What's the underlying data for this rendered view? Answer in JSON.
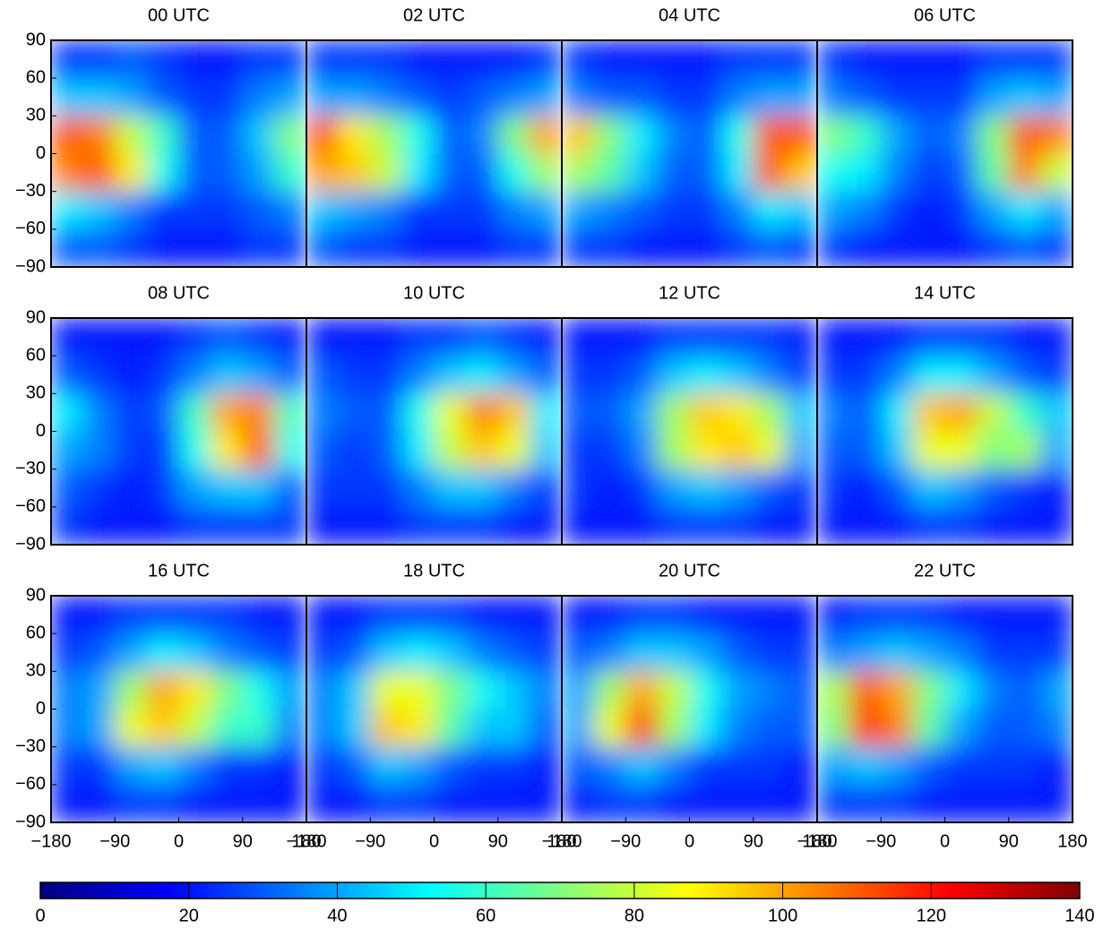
{
  "chart_data": [
    {
      "type": "heatmap",
      "title": "00 UTC",
      "xlim": [
        -180,
        180
      ],
      "ylim": [
        -90,
        90
      ],
      "yticks": [
        90,
        60,
        30,
        0,
        {
          "value": -30,
          "label": "−30"
        },
        {
          "value": -60,
          "label": "−60"
        },
        {
          "value": -90,
          "label": "−90"
        }
      ],
      "xbins": [
        -180,
        -135,
        -90,
        -45,
        0,
        45,
        90,
        135,
        180
      ],
      "ybins": [
        90,
        60,
        30,
        0,
        -30,
        -60,
        -90
      ],
      "values": [
        [
          25,
          25,
          30,
          25,
          20,
          20,
          25,
          25
        ],
        [
          45,
          45,
          40,
          30,
          25,
          25,
          35,
          40
        ],
        [
          110,
          105,
          80,
          60,
          30,
          30,
          45,
          70
        ],
        [
          105,
          110,
          90,
          55,
          30,
          30,
          40,
          60
        ],
        [
          50,
          45,
          35,
          25,
          25,
          25,
          30,
          35
        ],
        [
          30,
          30,
          25,
          20,
          20,
          20,
          25,
          25
        ]
      ]
    },
    {
      "type": "heatmap",
      "title": "02 UTC",
      "xlim": [
        -180,
        180
      ],
      "ylim": [
        -90,
        90
      ],
      "xbins": [
        -180,
        -135,
        -90,
        -45,
        0,
        45,
        90,
        135,
        180
      ],
      "ybins": [
        90,
        60,
        30,
        0,
        -30,
        -60,
        -90
      ],
      "values": [
        [
          25,
          25,
          25,
          20,
          20,
          20,
          20,
          25
        ],
        [
          40,
          40,
          35,
          30,
          25,
          30,
          35,
          40
        ],
        [
          110,
          90,
          75,
          55,
          30,
          35,
          70,
          100
        ],
        [
          100,
          95,
          80,
          50,
          30,
          30,
          55,
          75
        ],
        [
          45,
          40,
          35,
          25,
          25,
          25,
          35,
          40
        ],
        [
          30,
          25,
          25,
          20,
          20,
          20,
          25,
          25
        ]
      ]
    },
    {
      "type": "heatmap",
      "title": "04 UTC",
      "xlim": [
        -180,
        180
      ],
      "ylim": [
        -90,
        90
      ],
      "xbins": [
        -180,
        -135,
        -90,
        -45,
        0,
        45,
        90,
        135,
        180
      ],
      "ybins": [
        90,
        60,
        30,
        0,
        -30,
        -60,
        -90
      ],
      "values": [
        [
          25,
          20,
          20,
          20,
          20,
          25,
          25,
          25
        ],
        [
          35,
          30,
          30,
          25,
          25,
          35,
          40,
          40
        ],
        [
          95,
          70,
          50,
          35,
          30,
          55,
          110,
          110
        ],
        [
          75,
          65,
          45,
          30,
          30,
          50,
          110,
          95
        ],
        [
          40,
          35,
          30,
          25,
          25,
          35,
          50,
          45
        ],
        [
          25,
          25,
          20,
          20,
          20,
          25,
          30,
          25
        ]
      ]
    },
    {
      "type": "heatmap",
      "title": "06 UTC",
      "xlim": [
        -180,
        180
      ],
      "ylim": [
        -90,
        90
      ],
      "xbins": [
        -180,
        -135,
        -90,
        -45,
        0,
        45,
        90,
        135,
        180
      ],
      "ybins": [
        90,
        60,
        30,
        0,
        -30,
        -60,
        -90
      ],
      "values": [
        [
          25,
          20,
          20,
          20,
          20,
          25,
          25,
          25
        ],
        [
          35,
          30,
          25,
          25,
          25,
          40,
          45,
          40
        ],
        [
          70,
          60,
          40,
          30,
          35,
          70,
          110,
          105
        ],
        [
          55,
          50,
          35,
          25,
          30,
          65,
          105,
          80
        ],
        [
          40,
          35,
          25,
          20,
          25,
          40,
          50,
          40
        ],
        [
          25,
          20,
          20,
          20,
          20,
          25,
          30,
          25
        ]
      ]
    },
    {
      "type": "heatmap",
      "title": "08 UTC",
      "xlim": [
        -180,
        180
      ],
      "ylim": [
        -90,
        90
      ],
      "yticks": [
        90,
        60,
        30,
        0,
        {
          "value": -30,
          "label": "−30"
        },
        {
          "value": -60,
          "label": "−60"
        },
        {
          "value": -90,
          "label": "−90"
        }
      ],
      "xbins": [
        -180,
        -135,
        -90,
        -45,
        0,
        45,
        90,
        135,
        180
      ],
      "ybins": [
        90,
        60,
        30,
        0,
        -30,
        -60,
        -90
      ],
      "values": [
        [
          20,
          20,
          20,
          20,
          25,
          30,
          25,
          20
        ],
        [
          30,
          25,
          20,
          25,
          35,
          45,
          40,
          30
        ],
        [
          50,
          35,
          25,
          30,
          60,
          100,
          105,
          60
        ],
        [
          40,
          35,
          25,
          25,
          55,
          90,
          110,
          55
        ],
        [
          30,
          25,
          20,
          25,
          40,
          45,
          45,
          30
        ],
        [
          25,
          20,
          20,
          20,
          25,
          25,
          25,
          25
        ]
      ]
    },
    {
      "type": "heatmap",
      "title": "10 UTC",
      "xlim": [
        -180,
        180
      ],
      "ylim": [
        -90,
        90
      ],
      "xbins": [
        -180,
        -135,
        -90,
        -45,
        0,
        45,
        90,
        135,
        180
      ],
      "ybins": [
        90,
        60,
        30,
        0,
        -30,
        -60,
        -90
      ],
      "values": [
        [
          20,
          20,
          20,
          25,
          25,
          30,
          25,
          20
        ],
        [
          30,
          25,
          25,
          35,
          45,
          50,
          40,
          30
        ],
        [
          35,
          30,
          30,
          55,
          85,
          105,
          95,
          50
        ],
        [
          30,
          25,
          30,
          50,
          80,
          95,
          85,
          45
        ],
        [
          25,
          25,
          25,
          35,
          45,
          45,
          35,
          25
        ],
        [
          20,
          20,
          20,
          25,
          25,
          25,
          20,
          20
        ]
      ]
    },
    {
      "type": "heatmap",
      "title": "12 UTC",
      "xlim": [
        -180,
        180
      ],
      "ylim": [
        -90,
        90
      ],
      "xbins": [
        -180,
        -135,
        -90,
        -45,
        0,
        45,
        90,
        135,
        180
      ],
      "ybins": [
        90,
        60,
        30,
        0,
        -30,
        -60,
        -90
      ],
      "values": [
        [
          20,
          20,
          20,
          25,
          25,
          25,
          25,
          20
        ],
        [
          25,
          25,
          30,
          45,
          50,
          45,
          35,
          25
        ],
        [
          30,
          30,
          40,
          75,
          95,
          90,
          75,
          45
        ],
        [
          25,
          25,
          35,
          75,
          90,
          95,
          85,
          40
        ],
        [
          25,
          20,
          25,
          40,
          45,
          40,
          30,
          25
        ],
        [
          20,
          20,
          20,
          25,
          25,
          25,
          20,
          20
        ]
      ]
    },
    {
      "type": "heatmap",
      "title": "14 UTC",
      "xlim": [
        -180,
        180
      ],
      "ylim": [
        -90,
        90
      ],
      "xbins": [
        -180,
        -135,
        -90,
        -45,
        0,
        45,
        90,
        135,
        180
      ],
      "ybins": [
        90,
        60,
        30,
        0,
        -30,
        -60,
        -90
      ],
      "values": [
        [
          20,
          20,
          20,
          25,
          25,
          25,
          20,
          20
        ],
        [
          25,
          25,
          35,
          50,
          50,
          40,
          30,
          25
        ],
        [
          35,
          30,
          50,
          95,
          100,
          80,
          60,
          45
        ],
        [
          30,
          30,
          45,
          85,
          85,
          70,
          75,
          40
        ],
        [
          25,
          20,
          30,
          45,
          40,
          30,
          25,
          20
        ],
        [
          20,
          20,
          20,
          25,
          25,
          20,
          20,
          20
        ]
      ]
    },
    {
      "type": "heatmap",
      "title": "16 UTC",
      "xlim": [
        -180,
        180
      ],
      "ylim": [
        -90,
        90
      ],
      "yticks": [
        90,
        60,
        30,
        0,
        {
          "value": -30,
          "label": "−30"
        },
        {
          "value": -60,
          "label": "−60"
        },
        {
          "value": -90,
          "label": "−90"
        }
      ],
      "xticks": [
        {
          "value": -180,
          "label": "−180"
        },
        {
          "value": -90,
          "label": "−90"
        },
        0,
        90,
        180
      ],
      "xbins": [
        -180,
        -135,
        -90,
        -45,
        0,
        45,
        90,
        135,
        180
      ],
      "ybins": [
        90,
        60,
        30,
        0,
        -30,
        -60,
        -90
      ],
      "values": [
        [
          20,
          20,
          25,
          25,
          25,
          25,
          20,
          20
        ],
        [
          25,
          30,
          40,
          50,
          45,
          35,
          30,
          25
        ],
        [
          35,
          40,
          75,
          100,
          90,
          70,
          55,
          40
        ],
        [
          35,
          40,
          85,
          95,
          80,
          60,
          60,
          35
        ],
        [
          25,
          25,
          40,
          45,
          35,
          25,
          25,
          20
        ],
        [
          20,
          20,
          25,
          25,
          20,
          20,
          20,
          20
        ]
      ]
    },
    {
      "type": "heatmap",
      "title": "18 UTC",
      "xlim": [
        -180,
        180
      ],
      "ylim": [
        -90,
        90
      ],
      "xticks": [
        {
          "value": -180,
          "label": "−180"
        },
        {
          "value": -90,
          "label": "−90"
        },
        0,
        90,
        180
      ],
      "xbins": [
        -180,
        -135,
        -90,
        -45,
        0,
        45,
        90,
        135,
        180
      ],
      "ybins": [
        90,
        60,
        30,
        0,
        -30,
        -60,
        -90
      ],
      "values": [
        [
          20,
          20,
          25,
          25,
          25,
          20,
          20,
          20
        ],
        [
          25,
          30,
          45,
          50,
          45,
          35,
          30,
          25
        ],
        [
          35,
          45,
          85,
          85,
          70,
          55,
          45,
          35
        ],
        [
          35,
          45,
          95,
          90,
          65,
          45,
          45,
          30
        ],
        [
          25,
          30,
          45,
          40,
          30,
          25,
          25,
          20
        ],
        [
          20,
          20,
          25,
          25,
          20,
          20,
          20,
          20
        ]
      ]
    },
    {
      "type": "heatmap",
      "title": "20 UTC",
      "xlim": [
        -180,
        180
      ],
      "ylim": [
        -90,
        90
      ],
      "xticks": [
        {
          "value": -180,
          "label": "−180"
        },
        {
          "value": -90,
          "label": "−90"
        },
        0,
        90,
        180
      ],
      "xbins": [
        -180,
        -135,
        -90,
        -45,
        0,
        45,
        90,
        135,
        180
      ],
      "ybins": [
        90,
        60,
        30,
        0,
        -30,
        -60,
        -90
      ],
      "values": [
        [
          20,
          20,
          25,
          25,
          20,
          20,
          20,
          20
        ],
        [
          30,
          35,
          45,
          45,
          40,
          30,
          25,
          25
        ],
        [
          40,
          75,
          100,
          80,
          55,
          40,
          35,
          30
        ],
        [
          40,
          85,
          115,
          75,
          50,
          35,
          30,
          30
        ],
        [
          30,
          35,
          45,
          35,
          25,
          25,
          25,
          20
        ],
        [
          20,
          25,
          25,
          20,
          20,
          20,
          20,
          20
        ]
      ]
    },
    {
      "type": "heatmap",
      "title": "22 UTC",
      "xlim": [
        -180,
        180
      ],
      "ylim": [
        -90,
        90
      ],
      "xticks": [
        {
          "value": -180,
          "label": "−180"
        },
        {
          "value": -90,
          "label": "−90"
        },
        0,
        90,
        180
      ],
      "xbins": [
        -180,
        -135,
        -90,
        -45,
        0,
        45,
        90,
        135,
        180
      ],
      "ybins": [
        90,
        60,
        30,
        0,
        -30,
        -60,
        -90
      ],
      "values": [
        [
          20,
          25,
          25,
          25,
          20,
          20,
          20,
          20
        ],
        [
          35,
          40,
          45,
          40,
          35,
          25,
          25,
          25
        ],
        [
          75,
          110,
          100,
          70,
          50,
          35,
          30,
          40
        ],
        [
          70,
          115,
          105,
          65,
          40,
          30,
          30,
          35
        ],
        [
          40,
          45,
          40,
          30,
          25,
          25,
          25,
          20
        ],
        [
          25,
          25,
          25,
          20,
          20,
          20,
          20,
          20
        ]
      ]
    },
    {
      "type": "colorbar",
      "colormap": "jet",
      "zlim": [
        0,
        140
      ],
      "zticks": [
        0,
        20,
        40,
        60,
        80,
        100,
        120,
        140
      ]
    }
  ]
}
